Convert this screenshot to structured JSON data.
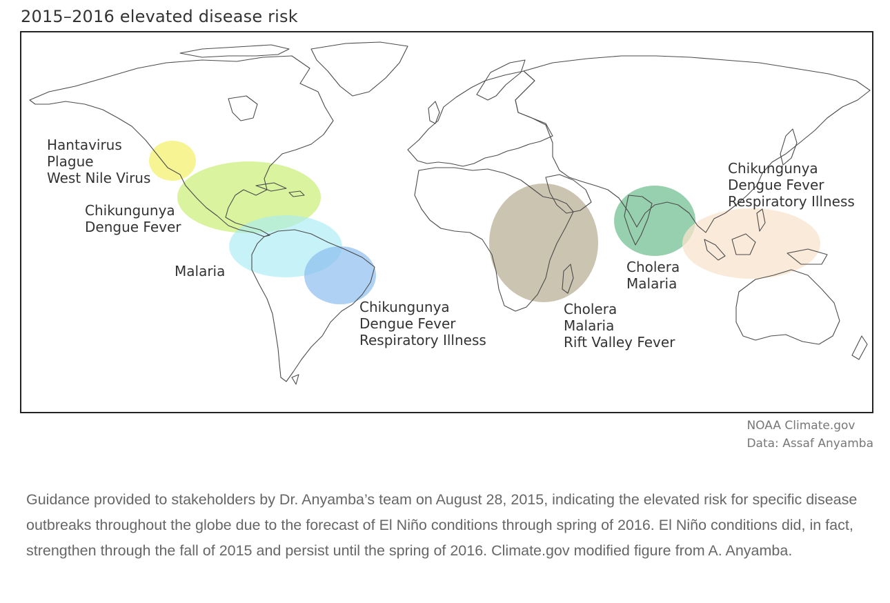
{
  "figure": {
    "title": "2015–2016 elevated disease risk",
    "regions": [
      {
        "id": "western-us",
        "diseases": [
          "Hantavirus",
          "Plague",
          "West Nile Virus"
        ],
        "color": "#f3f06a"
      },
      {
        "id": "central-america-caribbean",
        "diseases": [
          "Chikungunya",
          "Dengue Fever"
        ],
        "color": "#c5ec6c"
      },
      {
        "id": "northern-south-america",
        "diseases": [
          "Malaria"
        ],
        "color": "#a9ecf4"
      },
      {
        "id": "brazil",
        "diseases": [
          "Chikungunya",
          "Dengue Fever",
          "Respiratory Illness"
        ],
        "color": "#8cbdf0"
      },
      {
        "id": "east-africa",
        "diseases": [
          "Cholera",
          "Malaria",
          "Rift Valley Fever"
        ],
        "color": "#b6ad92"
      },
      {
        "id": "south-asia",
        "diseases": [
          "Cholera",
          "Malaria"
        ],
        "color": "#73c093"
      },
      {
        "id": "southeast-asia",
        "diseases": [
          "Chikungunya",
          "Dengue Fever",
          "Respiratory Illness"
        ],
        "color": "#f8e3cc"
      }
    ],
    "credit": {
      "source": "NOAA Climate.gov",
      "data": "Data: Assaf Anyamba"
    }
  },
  "caption": "Guidance provided to stakeholders by Dr. Anyamba’s team on August 28, 2015, indicating the elevated risk for specific disease outbreaks throughout the globe due to the forecast of El Niño conditions through spring of 2016. El Niño conditions did, in fact, strengthen through the fall of 2015 and persist until the spring of 2016. Climate.gov modified figure from A. Anyamba."
}
